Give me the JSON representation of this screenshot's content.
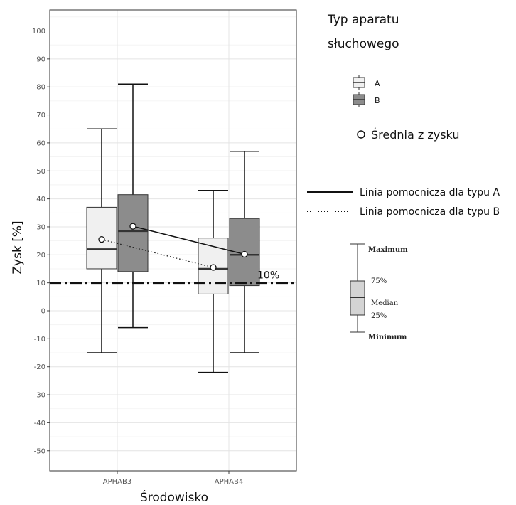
{
  "chart_data": {
    "type": "boxplot",
    "xlabel": "Środowisko",
    "ylabel": "Zysk [%]",
    "ylim": [
      -57,
      107
    ],
    "yticks": [
      100,
      90,
      80,
      70,
      60,
      50,
      40,
      30,
      20,
      10,
      0,
      -10,
      -20,
      -30,
      -40,
      -50
    ],
    "grid": true,
    "categories": [
      "APHAB3",
      "APHAB4"
    ],
    "series": [
      {
        "name": "A",
        "color": "#f0f0f0",
        "boxes": [
          {
            "category": "APHAB3",
            "min": -15,
            "q1": 15,
            "median": 22,
            "q3": 37,
            "max": 65,
            "mean": 25.5
          },
          {
            "category": "APHAB4",
            "min": -22,
            "q1": 6,
            "median": 15,
            "q3": 26,
            "max": 43,
            "mean": 15.5
          }
        ]
      },
      {
        "name": "B",
        "color": "#8c8c8c",
        "boxes": [
          {
            "category": "APHAB3",
            "min": -6,
            "q1": 14,
            "median": 28.5,
            "q3": 41.5,
            "max": 81,
            "mean": 30.2
          },
          {
            "category": "APHAB4",
            "min": -15,
            "q1": 9,
            "median": 20,
            "q3": 33,
            "max": 57,
            "mean": 20.2
          }
        ]
      }
    ],
    "reference_line": {
      "value": 10,
      "label": "10%",
      "style": "dash-dot"
    },
    "legend": {
      "position": "right",
      "title_line1": "Typ aparatu",
      "title_line2": "słuchowego",
      "entries": [
        "A",
        "B"
      ],
      "mean_label": "Średnia z zysku",
      "line_a_label": "Linia pomocnicza dla typu A",
      "line_b_label": "Linia pomocnicza dla typu B"
    },
    "key": {
      "maximum": "Maximum",
      "q3": "75%",
      "median": "Median",
      "q1": "25%",
      "minimum": "Minimum"
    }
  }
}
